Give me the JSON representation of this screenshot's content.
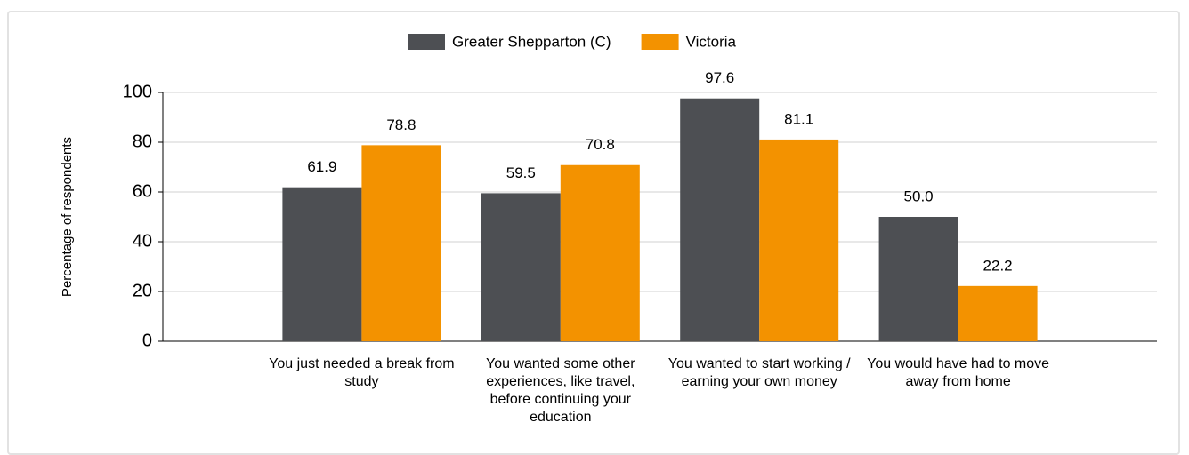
{
  "chart_data": {
    "type": "bar",
    "y_label": "Percentage of respondents",
    "categories": [
      "You just needed a break from study",
      "You wanted some other experiences, like travel, before continuing your education",
      "You wanted to start working / earning your own money",
      "You would have had to move away from home"
    ],
    "series": [
      {
        "name": "Greater Shepparton (C)",
        "color": "#4d4f53",
        "values": [
          61.9,
          59.5,
          97.6,
          50.0
        ],
        "value_labels": [
          "61.9",
          "59.5",
          "97.6",
          "50.0"
        ]
      },
      {
        "name": "Victoria",
        "color": "#f39200",
        "values": [
          78.8,
          70.8,
          81.1,
          22.2
        ],
        "value_labels": [
          "78.8",
          "70.8",
          "81.1",
          "22.2"
        ]
      }
    ],
    "ylim": [
      0,
      100
    ],
    "yticks": [
      0,
      20,
      40,
      60,
      80,
      100
    ],
    "grid": true,
    "legend": "top"
  }
}
